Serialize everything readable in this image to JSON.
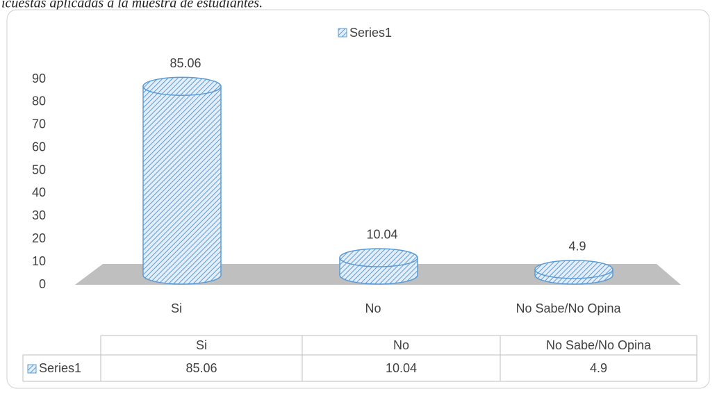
{
  "caption": "icuestas aplicadas a la muestra de estudiantes.",
  "chart_data": {
    "type": "cylinder",
    "categories": [
      "Si",
      "No",
      "No Sabe/No Opina"
    ],
    "series": [
      {
        "name": "Series1",
        "color": "#5b9bd5",
        "values": [
          85.06,
          10.04,
          4.9
        ]
      }
    ],
    "ylim": [
      0,
      90
    ],
    "yticks": [
      0,
      10,
      20,
      30,
      40,
      50,
      60,
      70,
      80,
      90
    ],
    "grid": false,
    "legend": "top",
    "data_table": true
  }
}
